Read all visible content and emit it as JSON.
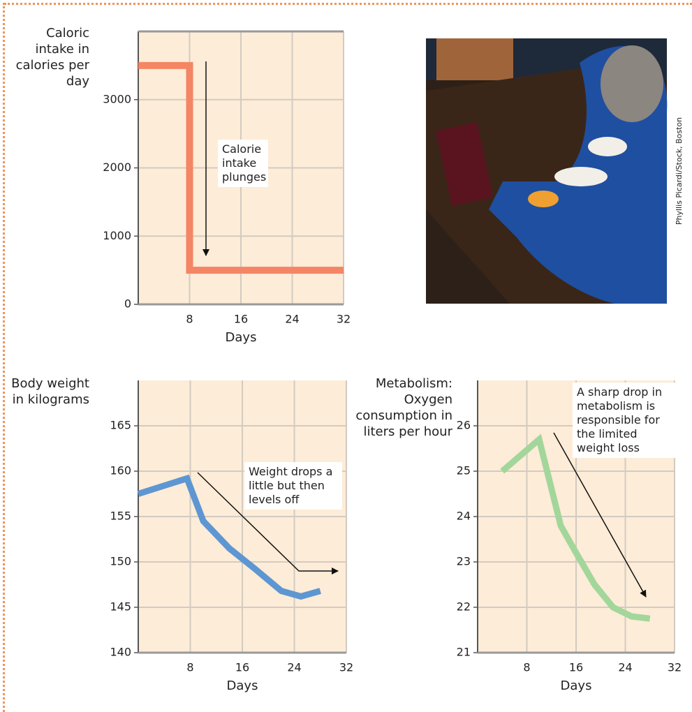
{
  "chart_data": [
    {
      "type": "line",
      "y_label": "Caloric intake in calories per day",
      "x_label": "Days",
      "x": [
        0,
        8,
        8,
        32
      ],
      "values": [
        3500,
        3500,
        500,
        500
      ],
      "color": "#f48565",
      "xlim": [
        0,
        32
      ],
      "ylim": [
        0,
        4000
      ],
      "xticks": [
        8,
        16,
        24,
        32
      ],
      "yticks": [
        0,
        1000,
        2000,
        3000
      ],
      "grid": true,
      "annotation": "Calorie intake plunges"
    },
    {
      "type": "line",
      "y_label": "Body weight in kilograms",
      "x_label": "Days",
      "x": [
        0,
        7.5,
        10,
        14,
        18,
        22,
        25,
        28
      ],
      "values": [
        157.5,
        159.2,
        154.5,
        151.5,
        149.2,
        146.8,
        146.2,
        146.8
      ],
      "color": "#5e96d2",
      "xlim": [
        0,
        32
      ],
      "ylim": [
        140,
        170
      ],
      "xticks": [
        8,
        16,
        24,
        32
      ],
      "yticks": [
        140,
        145,
        150,
        155,
        160,
        165
      ],
      "grid": true,
      "annotation": "Weight drops a little but then levels off"
    },
    {
      "type": "line",
      "y_label": "Metabolism: Oxygen consumption in liters per hour",
      "x_label": "Days",
      "x": [
        4,
        10,
        13.5,
        16,
        19,
        22,
        25,
        28
      ],
      "values": [
        25,
        25.7,
        23.8,
        23.2,
        22.5,
        22.0,
        21.8,
        21.75
      ],
      "color": "#a3d69b",
      "xlim": [
        0,
        32
      ],
      "ylim": [
        21,
        27
      ],
      "xticks": [
        8,
        16,
        24,
        32
      ],
      "yticks": [
        21,
        22,
        23,
        24,
        25,
        26
      ],
      "grid": true,
      "annotation": "A sharp drop in metabolism is responsible for the limited weight loss"
    }
  ],
  "photo": {
    "credit": "Phyllis Picardi/Stock, Boston"
  }
}
